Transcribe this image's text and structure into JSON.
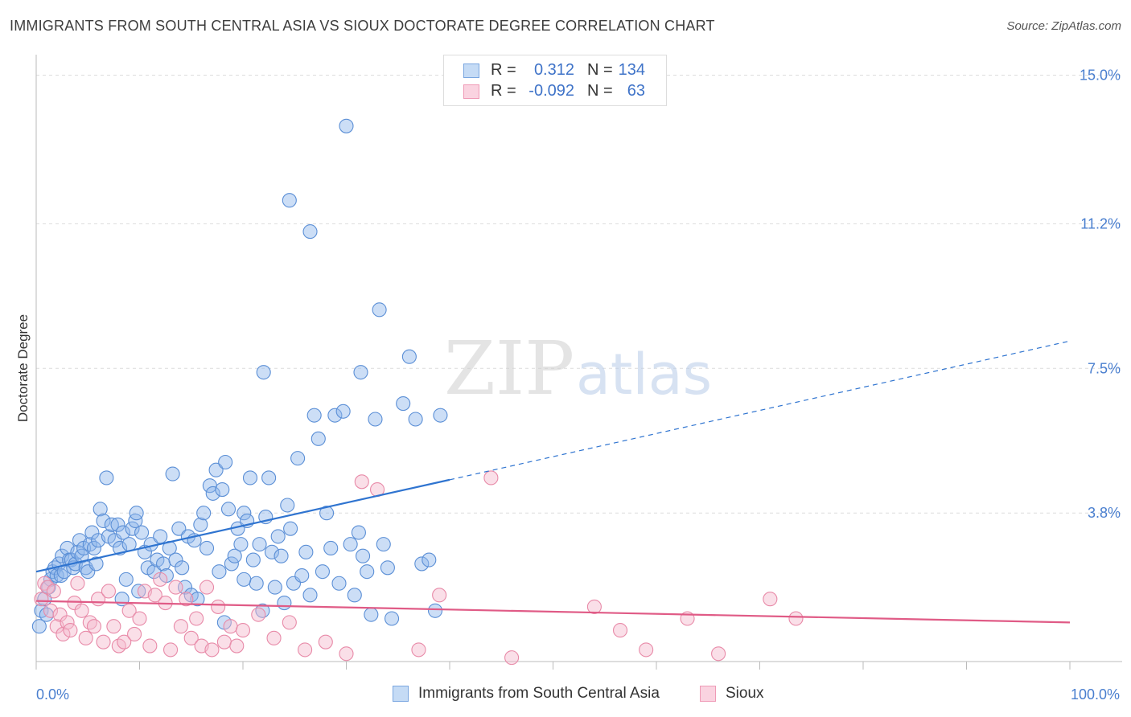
{
  "chart_data": {
    "type": "scatter",
    "title": "IMMIGRANTS FROM SOUTH CENTRAL ASIA VS SIOUX DOCTORATE DEGREE CORRELATION CHART",
    "source": "Source: ZipAtlas.com",
    "xlabel": "",
    "ylabel": "Doctorate Degree",
    "xlim": [
      0,
      100
    ],
    "ylim": [
      0,
      15.3
    ],
    "y_ticks": [
      {
        "value": 3.8,
        "label": "3.8%"
      },
      {
        "value": 7.5,
        "label": "7.5%"
      },
      {
        "value": 11.2,
        "label": "11.2%"
      },
      {
        "value": 15.0,
        "label": "15.0%"
      }
    ],
    "x_ticks": [
      {
        "value": 0,
        "label": "0.0%"
      },
      {
        "value": 100,
        "label": "100.0%"
      }
    ],
    "watermark": {
      "part1": "ZIP",
      "part2": "atlas"
    },
    "legend": [
      {
        "r_label": "R =",
        "r_value": "0.312",
        "n_label": "N =",
        "n_value": "134"
      },
      {
        "r_label": "R =",
        "r_value": "-0.092",
        "n_label": "N =",
        "n_value": "63"
      }
    ],
    "series": [
      {
        "name": "Immigrants from South Central Asia",
        "color": "#8fb6ea",
        "edge": "#5b8fd6",
        "line_color": "#2f74d0",
        "trend": {
          "x0": 0,
          "y0": 2.3,
          "x1": 40,
          "y1": 4.65,
          "dash_to_x": 100,
          "dash_to_y": 8.2
        },
        "points": [
          [
            0.3,
            0.9
          ],
          [
            0.5,
            1.3
          ],
          [
            0.8,
            1.6
          ],
          [
            1,
            1.2
          ],
          [
            1.2,
            1.9
          ],
          [
            1.4,
            2.1
          ],
          [
            1.6,
            2.3
          ],
          [
            1.8,
            2.4
          ],
          [
            2,
            2.2
          ],
          [
            2.2,
            2.5
          ],
          [
            2.4,
            2.2
          ],
          [
            2.5,
            2.7
          ],
          [
            2.7,
            2.3
          ],
          [
            3,
            2.9
          ],
          [
            3.2,
            2.6
          ],
          [
            3.4,
            2.6
          ],
          [
            3.6,
            2.4
          ],
          [
            3.8,
            2.5
          ],
          [
            4,
            2.8
          ],
          [
            4.2,
            3.1
          ],
          [
            4.4,
            2.7
          ],
          [
            4.6,
            2.9
          ],
          [
            4.8,
            2.4
          ],
          [
            5,
            2.3
          ],
          [
            5.2,
            3.0
          ],
          [
            5.4,
            3.3
          ],
          [
            5.6,
            2.9
          ],
          [
            5.8,
            2.5
          ],
          [
            6,
            3.1
          ],
          [
            6.2,
            3.9
          ],
          [
            6.5,
            3.6
          ],
          [
            6.8,
            4.7
          ],
          [
            7,
            3.2
          ],
          [
            7.3,
            3.5
          ],
          [
            7.6,
            3.1
          ],
          [
            7.9,
            3.5
          ],
          [
            8.1,
            2.9
          ],
          [
            8.4,
            3.3
          ],
          [
            8.7,
            2.1
          ],
          [
            9,
            3.0
          ],
          [
            9.3,
            3.4
          ],
          [
            9.6,
            3.6
          ],
          [
            9.9,
            1.8
          ],
          [
            10.2,
            3.3
          ],
          [
            10.5,
            2.8
          ],
          [
            10.8,
            2.4
          ],
          [
            11.1,
            3.0
          ],
          [
            11.4,
            2.3
          ],
          [
            11.7,
            2.6
          ],
          [
            12,
            3.2
          ],
          [
            12.3,
            2.5
          ],
          [
            12.6,
            2.2
          ],
          [
            12.9,
            2.9
          ],
          [
            13.2,
            4.8
          ],
          [
            13.5,
            2.6
          ],
          [
            13.8,
            3.4
          ],
          [
            14.1,
            2.4
          ],
          [
            14.4,
            1.9
          ],
          [
            14.7,
            3.2
          ],
          [
            15,
            1.7
          ],
          [
            15.3,
            3.1
          ],
          [
            15.6,
            1.6
          ],
          [
            15.9,
            3.5
          ],
          [
            16.2,
            3.8
          ],
          [
            16.5,
            2.9
          ],
          [
            16.8,
            4.5
          ],
          [
            17.1,
            4.3
          ],
          [
            17.4,
            4.9
          ],
          [
            17.7,
            2.3
          ],
          [
            18,
            4.4
          ],
          [
            18.3,
            5.1
          ],
          [
            18.6,
            3.9
          ],
          [
            18.9,
            2.5
          ],
          [
            19.2,
            2.7
          ],
          [
            19.5,
            3.4
          ],
          [
            19.8,
            3.0
          ],
          [
            20.1,
            3.8
          ],
          [
            20.4,
            3.6
          ],
          [
            20.7,
            4.7
          ],
          [
            21,
            2.6
          ],
          [
            21.3,
            2.0
          ],
          [
            21.6,
            3.0
          ],
          [
            21.9,
            1.3
          ],
          [
            22.2,
            3.7
          ],
          [
            22.5,
            4.7
          ],
          [
            22.8,
            2.8
          ],
          [
            23.1,
            1.9
          ],
          [
            23.4,
            3.2
          ],
          [
            23.7,
            2.7
          ],
          [
            24,
            1.5
          ],
          [
            24.3,
            4.0
          ],
          [
            24.6,
            3.4
          ],
          [
            24.9,
            2.0
          ],
          [
            25.3,
            5.2
          ],
          [
            25.7,
            2.2
          ],
          [
            26.1,
            2.8
          ],
          [
            26.5,
            1.7
          ],
          [
            26.9,
            6.3
          ],
          [
            27.3,
            5.7
          ],
          [
            27.7,
            2.3
          ],
          [
            28.1,
            3.8
          ],
          [
            28.5,
            2.9
          ],
          [
            28.9,
            6.3
          ],
          [
            29.3,
            2.0
          ],
          [
            29.7,
            6.4
          ],
          [
            30,
            13.7
          ],
          [
            30.4,
            3.0
          ],
          [
            30.8,
            1.7
          ],
          [
            31.2,
            3.3
          ],
          [
            31.6,
            2.7
          ],
          [
            32,
            2.3
          ],
          [
            32.4,
            1.2
          ],
          [
            32.8,
            6.2
          ],
          [
            33.2,
            9.0
          ],
          [
            33.6,
            3.0
          ],
          [
            34,
            2.4
          ],
          [
            34.4,
            1.1
          ],
          [
            35.5,
            6.6
          ],
          [
            36.1,
            7.8
          ],
          [
            36.7,
            6.2
          ],
          [
            37.3,
            2.5
          ],
          [
            38,
            2.6
          ],
          [
            38.6,
            1.3
          ],
          [
            39.1,
            6.3
          ],
          [
            24.5,
            11.8
          ],
          [
            26.5,
            11.0
          ],
          [
            22,
            7.4
          ],
          [
            31.4,
            7.4
          ],
          [
            20.1,
            2.1
          ],
          [
            9.7,
            3.8
          ],
          [
            8.3,
            1.6
          ],
          [
            18.2,
            1.0
          ]
        ]
      },
      {
        "name": "Sioux",
        "color": "#f5b8cc",
        "edge": "#e88aa8",
        "line_color": "#e05b86",
        "trend": {
          "x0": 0,
          "y0": 1.55,
          "x1": 100,
          "y1": 1.0
        },
        "points": [
          [
            0.5,
            1.6
          ],
          [
            0.8,
            2.0
          ],
          [
            1.1,
            1.9
          ],
          [
            1.4,
            1.3
          ],
          [
            1.7,
            1.8
          ],
          [
            2,
            0.9
          ],
          [
            2.3,
            1.2
          ],
          [
            2.6,
            0.7
          ],
          [
            3,
            1.0
          ],
          [
            3.3,
            0.8
          ],
          [
            3.7,
            1.5
          ],
          [
            4,
            2.0
          ],
          [
            4.4,
            1.3
          ],
          [
            4.8,
            0.6
          ],
          [
            5.2,
            1.0
          ],
          [
            5.6,
            0.9
          ],
          [
            6,
            1.6
          ],
          [
            6.5,
            0.5
          ],
          [
            7,
            1.8
          ],
          [
            7.5,
            0.9
          ],
          [
            8,
            0.4
          ],
          [
            8.5,
            0.5
          ],
          [
            9,
            1.3
          ],
          [
            9.5,
            0.7
          ],
          [
            10,
            1.1
          ],
          [
            10.5,
            1.8
          ],
          [
            11,
            0.4
          ],
          [
            11.5,
            1.7
          ],
          [
            12,
            2.1
          ],
          [
            12.5,
            1.5
          ],
          [
            13,
            0.3
          ],
          [
            13.5,
            1.9
          ],
          [
            14,
            0.9
          ],
          [
            14.5,
            1.6
          ],
          [
            15,
            0.6
          ],
          [
            15.5,
            1.1
          ],
          [
            16,
            0.4
          ],
          [
            16.5,
            1.9
          ],
          [
            17,
            0.3
          ],
          [
            17.6,
            1.4
          ],
          [
            18.2,
            0.5
          ],
          [
            18.8,
            0.9
          ],
          [
            19.4,
            0.4
          ],
          [
            20,
            0.8
          ],
          [
            21.5,
            1.2
          ],
          [
            23,
            0.6
          ],
          [
            24.5,
            1.0
          ],
          [
            26,
            0.3
          ],
          [
            28,
            0.5
          ],
          [
            30,
            0.2
          ],
          [
            31.5,
            4.6
          ],
          [
            33,
            4.4
          ],
          [
            37,
            0.3
          ],
          [
            39,
            1.7
          ],
          [
            44,
            4.7
          ],
          [
            46,
            0.1
          ],
          [
            54,
            1.4
          ],
          [
            56.5,
            0.8
          ],
          [
            59,
            0.3
          ],
          [
            63,
            1.1
          ],
          [
            66,
            0.2
          ],
          [
            71,
            1.6
          ],
          [
            73.5,
            1.1
          ]
        ]
      }
    ]
  }
}
